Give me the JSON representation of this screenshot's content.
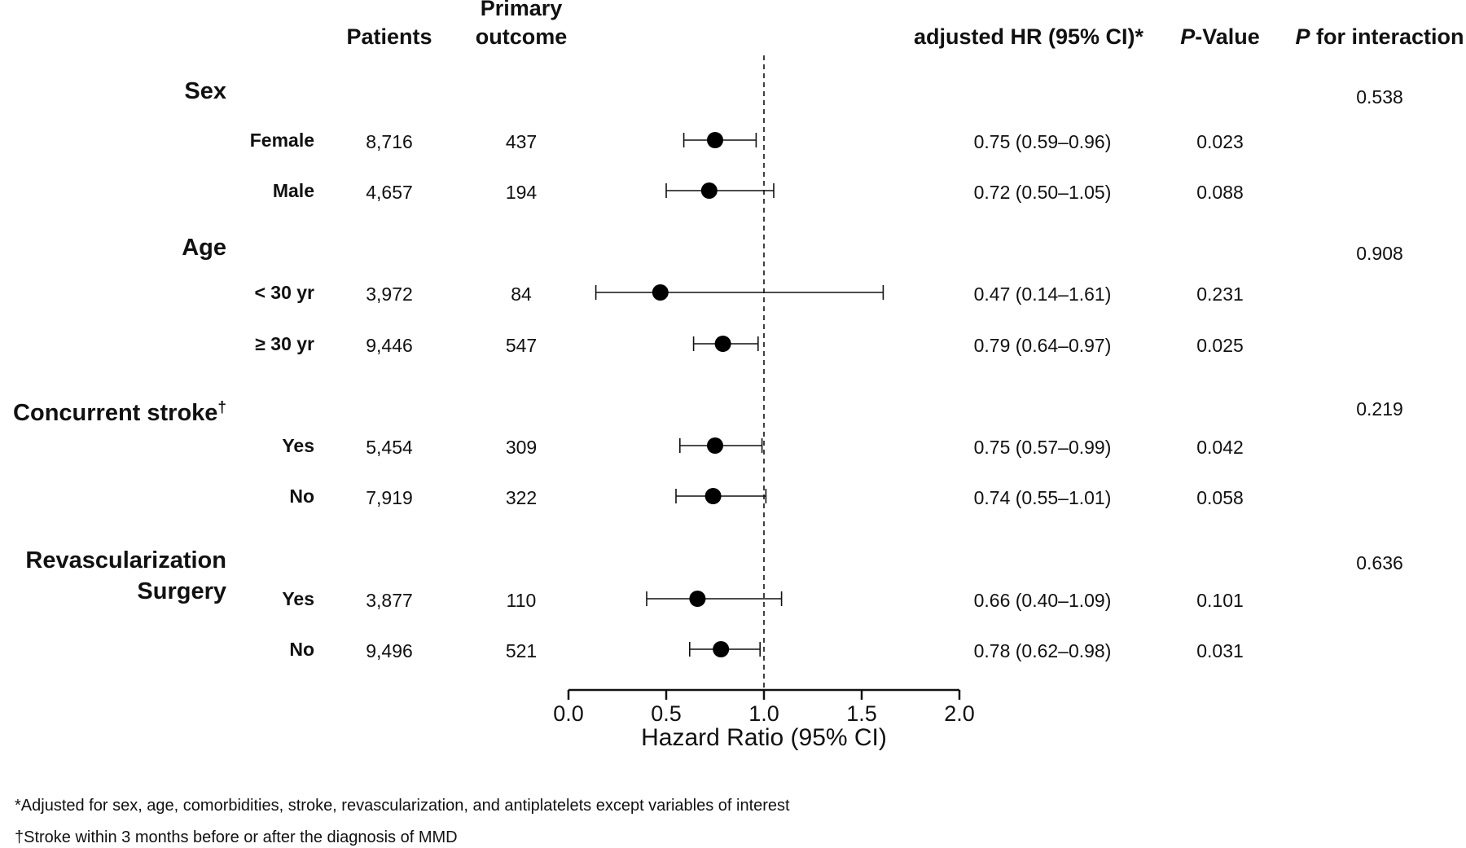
{
  "chart_data": {
    "type": "forest",
    "headers": {
      "patients": "Patients",
      "outcome_line1": "Primary",
      "outcome_line2": "outcome",
      "hr_prefix": "adjusted HR (95% CI)*",
      "pvalue_italic": "P",
      "pvalue_rest": "-Value",
      "pint_italic": "P",
      "pint_rest": " for interaction"
    },
    "groups": [
      {
        "label_lines": [
          "Sex"
        ],
        "p_interaction": "0.538",
        "rows": [
          {
            "label": "Female",
            "patients": "8,716",
            "outcome": "437",
            "hr_text": "0.75 (0.59–0.96)",
            "p_value": "0.023",
            "hr": 0.75,
            "lo": 0.59,
            "hi": 0.96
          },
          {
            "label": "Male",
            "patients": "4,657",
            "outcome": "194",
            "hr_text": "0.72 (0.50–1.05)",
            "p_value": "0.088",
            "hr": 0.72,
            "lo": 0.5,
            "hi": 1.05
          }
        ]
      },
      {
        "label_lines": [
          "Age"
        ],
        "p_interaction": "0.908",
        "rows": [
          {
            "label": "< 30 yr",
            "patients": "3,972",
            "outcome": "84",
            "hr_text": "0.47 (0.14–1.61)",
            "p_value": "0.231",
            "hr": 0.47,
            "lo": 0.14,
            "hi": 1.61
          },
          {
            "label": "≥ 30 yr",
            "patients": "9,446",
            "outcome": "547",
            "hr_text": "0.79 (0.64–0.97)",
            "p_value": "0.025",
            "hr": 0.79,
            "lo": 0.64,
            "hi": 0.97
          }
        ]
      },
      {
        "label_lines": [
          "Concurrent stroke"
        ],
        "label_sup": "†",
        "p_interaction": "0.219",
        "rows": [
          {
            "label": "Yes",
            "patients": "5,454",
            "outcome": "309",
            "hr_text": "0.75 (0.57–0.99)",
            "p_value": "0.042",
            "hr": 0.75,
            "lo": 0.57,
            "hi": 0.99
          },
          {
            "label": "No",
            "patients": "7,919",
            "outcome": "322",
            "hr_text": "0.74 (0.55–1.01)",
            "p_value": "0.058",
            "hr": 0.74,
            "lo": 0.55,
            "hi": 1.01
          }
        ]
      },
      {
        "label_lines": [
          "Revascularization",
          "Surgery"
        ],
        "p_interaction": "0.636",
        "rows": [
          {
            "label": "Yes",
            "patients": "3,877",
            "outcome": "110",
            "hr_text": "0.66 (0.40–1.09)",
            "p_value": "0.101",
            "hr": 0.66,
            "lo": 0.4,
            "hi": 1.09
          },
          {
            "label": "No",
            "patients": "9,496",
            "outcome": "521",
            "hr_text": "0.78 (0.62–0.98)",
            "p_value": "0.031",
            "hr": 0.78,
            "lo": 0.62,
            "hi": 0.98
          }
        ]
      }
    ],
    "x_axis": {
      "label": "Hazard Ratio (95% CI)",
      "range": [
        0.0,
        2.0
      ],
      "ticks": [
        0.0,
        0.5,
        1.0,
        1.5,
        2.0
      ],
      "tick_labels": [
        "0.0",
        "0.5",
        "1.0",
        "1.5",
        "2.0"
      ],
      "reference_line": 1.0
    },
    "footnotes": [
      "*Adjusted for sex, age, comorbidities, stroke, revascularization, and antiplatelets except variables of interest",
      "†Stroke within 3 months before or after the diagnosis of MMD"
    ]
  }
}
